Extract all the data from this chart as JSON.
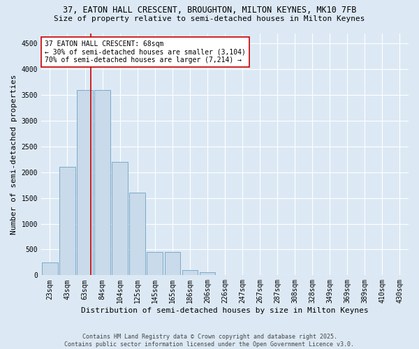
{
  "title_line1": "37, EATON HALL CRESCENT, BROUGHTON, MILTON KEYNES, MK10 7FB",
  "title_line2": "Size of property relative to semi-detached houses in Milton Keynes",
  "xlabel": "Distribution of semi-detached houses by size in Milton Keynes",
  "ylabel": "Number of semi-detached properties",
  "categories": [
    "23sqm",
    "43sqm",
    "63sqm",
    "84sqm",
    "104sqm",
    "125sqm",
    "145sqm",
    "165sqm",
    "186sqm",
    "206sqm",
    "226sqm",
    "247sqm",
    "267sqm",
    "287sqm",
    "308sqm",
    "328sqm",
    "349sqm",
    "369sqm",
    "389sqm",
    "410sqm",
    "430sqm"
  ],
  "values": [
    250,
    2100,
    3600,
    3600,
    2200,
    1600,
    450,
    450,
    100,
    55,
    0,
    0,
    0,
    0,
    0,
    0,
    0,
    0,
    0,
    0,
    0
  ],
  "bar_color": "#c9daea",
  "bar_edge_color": "#7aaac8",
  "background_color": "#dce9f5",
  "grid_color": "#ffffff",
  "vline_color": "#cc0000",
  "vline_x": 2.35,
  "subject_label": "37 EATON HALL CRESCENT: 68sqm",
  "pct_smaller": 30,
  "pct_smaller_count": 3104,
  "pct_larger": 70,
  "pct_larger_count": 7214,
  "annotation_box_facecolor": "#ffffff",
  "annotation_box_edgecolor": "#cc0000",
  "ylim": [
    0,
    4700
  ],
  "yticks": [
    0,
    500,
    1000,
    1500,
    2000,
    2500,
    3000,
    3500,
    4000,
    4500
  ],
  "footer": "Contains HM Land Registry data © Crown copyright and database right 2025.\nContains public sector information licensed under the Open Government Licence v3.0.",
  "title_fontsize": 8.5,
  "subtitle_fontsize": 8,
  "tick_fontsize": 7,
  "label_fontsize": 8,
  "annotation_fontsize": 7,
  "footer_fontsize": 6
}
